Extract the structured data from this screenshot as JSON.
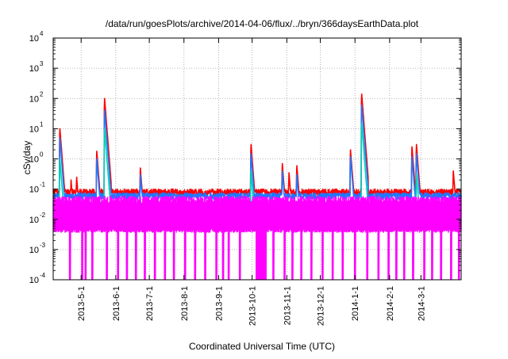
{
  "chart_data": {
    "type": "line",
    "title": "/data/run/goesPlots/archive/2014-04-06/flux/../bryn/366daysEarthData.plot",
    "xlabel": "Coordinated Universal Time (UTC)",
    "ylabel": "cSv/day",
    "y_scale": "log",
    "ylim": [
      0.0001,
      10000
    ],
    "xlim": [
      "2013-04-06",
      "2014-04-06"
    ],
    "grid": true,
    "legend": "none",
    "y_ticks": [
      {
        "value": 0.0001,
        "base": "10",
        "exp": "-4"
      },
      {
        "value": 0.001,
        "base": "10",
        "exp": "-3"
      },
      {
        "value": 0.01,
        "base": "10",
        "exp": "-2"
      },
      {
        "value": 0.1,
        "base": "10",
        "exp": "-1"
      },
      {
        "value": 1,
        "base": "10",
        "exp": "0"
      },
      {
        "value": 10,
        "base": "10",
        "exp": "1"
      },
      {
        "value": 100,
        "base": "10",
        "exp": "2"
      },
      {
        "value": 1000,
        "base": "10",
        "exp": "3"
      },
      {
        "value": 10000,
        "base": "10",
        "exp": "4"
      }
    ],
    "x_ticks": [
      "2013-5-1",
      "2013-6-1",
      "2013-7-1",
      "2013-8-1",
      "2013-9-1",
      "2013-10-1",
      "2013-11-1",
      "2013-12-1",
      "2014-1-1",
      "2014-2-1",
      "2014-3-1"
    ],
    "series": [
      {
        "color": "#ff0000",
        "baseline": 0.08,
        "events": [
          [
            "2013-04-12",
            10
          ],
          [
            "2013-04-22",
            0.2
          ],
          [
            "2013-04-27",
            0.25
          ],
          [
            "2013-05-15",
            1.8
          ],
          [
            "2013-05-22",
            100
          ],
          [
            "2013-06-23",
            0.5
          ],
          [
            "2013-09-30",
            3
          ],
          [
            "2013-10-28",
            0.7
          ],
          [
            "2013-11-03",
            0.35
          ],
          [
            "2013-11-10",
            0.6
          ],
          [
            "2013-12-28",
            2
          ],
          [
            "2014-01-07",
            140
          ],
          [
            "2014-02-21",
            2.5
          ],
          [
            "2014-02-25",
            3
          ],
          [
            "2014-03-30",
            0.4
          ]
        ]
      },
      {
        "color": "#1f78ff",
        "baseline": 0.06,
        "events": [
          [
            "2013-04-12",
            5
          ],
          [
            "2013-05-15",
            1
          ],
          [
            "2013-05-22",
            40
          ],
          [
            "2013-06-23",
            0.3
          ],
          [
            "2013-09-30",
            1.5
          ],
          [
            "2013-10-28",
            0.4
          ],
          [
            "2013-11-10",
            0.3
          ],
          [
            "2013-12-28",
            1.2
          ],
          [
            "2014-01-07",
            60
          ],
          [
            "2014-02-21",
            1.2
          ],
          [
            "2014-02-25",
            1.5
          ]
        ]
      },
      {
        "color": "#00d2b4",
        "baseline": 0.03,
        "events": [
          [
            "2013-04-12",
            1
          ],
          [
            "2013-05-22",
            10
          ],
          [
            "2013-09-30",
            0.4
          ],
          [
            "2014-01-07",
            15
          ],
          [
            "2014-02-25",
            0.3
          ]
        ]
      },
      {
        "color": "#ff00ff",
        "baseline": 0.015,
        "band": [
          0.004,
          0.05
        ],
        "drops": [
          "2013-04-21",
          "2013-05-02",
          "2013-05-05",
          "2013-05-11",
          "2013-05-24",
          "2013-06-03",
          "2013-06-11",
          "2013-06-19",
          "2013-06-27",
          "2013-07-06",
          "2013-07-15",
          "2013-07-23",
          "2013-08-02",
          "2013-08-11",
          "2013-08-20",
          "2013-08-30",
          "2013-09-05",
          "2013-09-10",
          "2013-09-20",
          "2013-10-05",
          "2013-10-06",
          "2013-10-07",
          "2013-10-08",
          "2013-10-09",
          "2013-10-10",
          "2013-10-11",
          "2013-10-12",
          "2013-10-13",
          "2013-10-20",
          "2013-10-30",
          "2013-11-06",
          "2013-11-14",
          "2013-11-23",
          "2013-12-03",
          "2013-12-12",
          "2013-12-21",
          "2014-01-01",
          "2014-01-12",
          "2014-01-22",
          "2014-01-31",
          "2014-02-07",
          "2014-02-14",
          "2014-02-22",
          "2014-03-04",
          "2014-03-11",
          "2014-03-19",
          "2014-03-28",
          "2014-04-04"
        ]
      }
    ]
  }
}
